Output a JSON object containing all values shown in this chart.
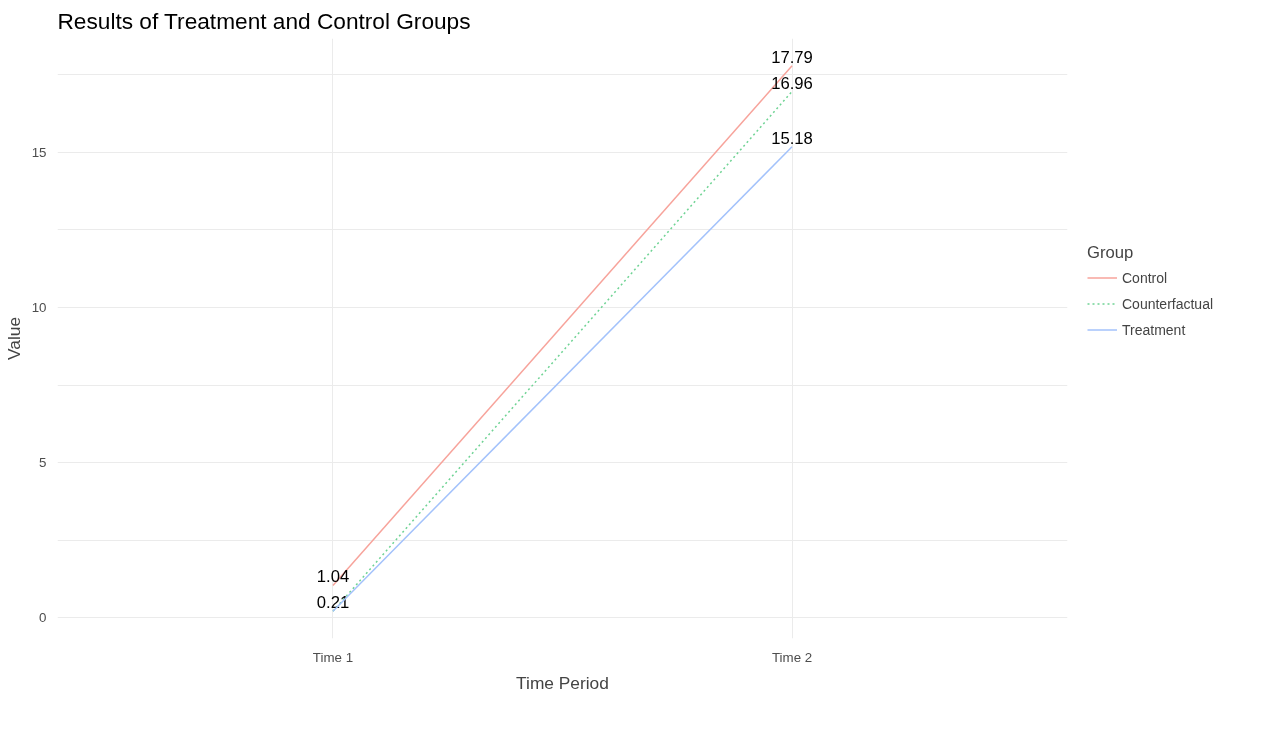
{
  "chart_data": {
    "type": "line",
    "title": "Results of Treatment and Control Groups",
    "xlabel": "Time Period",
    "ylabel": "Value",
    "legend_title": "Group",
    "categories": [
      "Time 1",
      "Time 2"
    ],
    "series": [
      {
        "name": "Control",
        "color": "#f7a39b",
        "values": [
          1.04,
          17.79
        ],
        "line_style": "solid"
      },
      {
        "name": "Counterfactual",
        "color": "#6fd394",
        "values": [
          0.21,
          16.96
        ],
        "line_style": "dotted"
      },
      {
        "name": "Treatment",
        "color": "#a3c2fb",
        "values": [
          0.21,
          15.18
        ],
        "line_style": "solid",
        "value_labels": [
          null,
          "15.18"
        ]
      }
    ],
    "ylim": [
      -0.67,
      18.67
    ],
    "yticks": [
      0,
      {
        "value": 2.5,
        "label": null
      },
      5,
      {
        "value": 7.5,
        "label": null
      },
      10,
      {
        "value": 12.5,
        "label": null
      },
      15,
      {
        "value": 17.5,
        "label": null
      }
    ],
    "grid": true,
    "legend": "right",
    "data_labels": true,
    "marker": "none"
  }
}
